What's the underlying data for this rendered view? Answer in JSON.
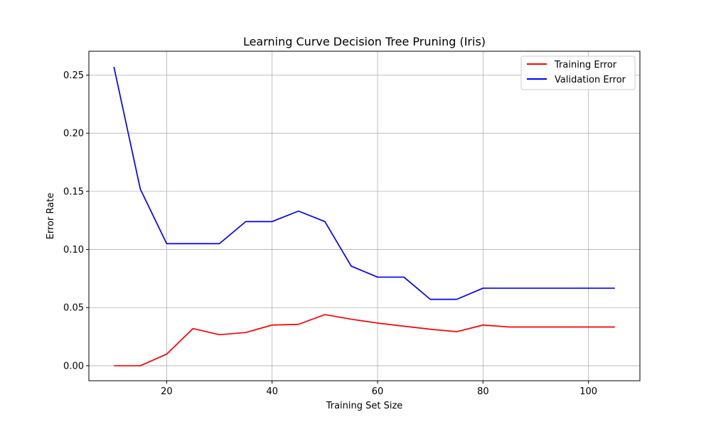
{
  "chart_data": {
    "type": "line",
    "title": "Learning Curve Decision Tree Pruning (Iris)",
    "xlabel": "Training Set Size",
    "ylabel": "Error Rate",
    "xlim": [
      5.25,
      109.75
    ],
    "ylim": [
      -0.0129,
      0.2705
    ],
    "xticks": [
      20,
      40,
      60,
      80,
      100
    ],
    "xtick_labels": [
      "20",
      "40",
      "60",
      "80",
      "100"
    ],
    "yticks": [
      0.0,
      0.05,
      0.1,
      0.15,
      0.2,
      0.25
    ],
    "ytick_labels": [
      "0.00",
      "0.05",
      "0.10",
      "0.15",
      "0.20",
      "0.25"
    ],
    "grid": true,
    "legend_position": "top-right",
    "x": [
      10,
      15,
      20,
      25,
      30,
      35,
      40,
      45,
      50,
      55,
      60,
      65,
      70,
      75,
      80,
      85,
      90,
      95,
      100,
      105
    ],
    "series": [
      {
        "name": "Training Error",
        "color": "#ff0000",
        "values": [
          0.0,
          0.0,
          0.01,
          0.032,
          0.0267,
          0.0286,
          0.035,
          0.0356,
          0.044,
          0.04,
          0.0367,
          0.034,
          0.0314,
          0.0293,
          0.035,
          0.0333,
          0.0333,
          0.0333,
          0.0333,
          0.0333
        ]
      },
      {
        "name": "Validation Error",
        "color": "#0000ff",
        "values": [
          0.257,
          0.152,
          0.105,
          0.105,
          0.105,
          0.124,
          0.124,
          0.133,
          0.124,
          0.0857,
          0.0762,
          0.0762,
          0.0571,
          0.0571,
          0.0667,
          0.0667,
          0.0667,
          0.0667,
          0.0667,
          0.0667
        ]
      }
    ]
  }
}
